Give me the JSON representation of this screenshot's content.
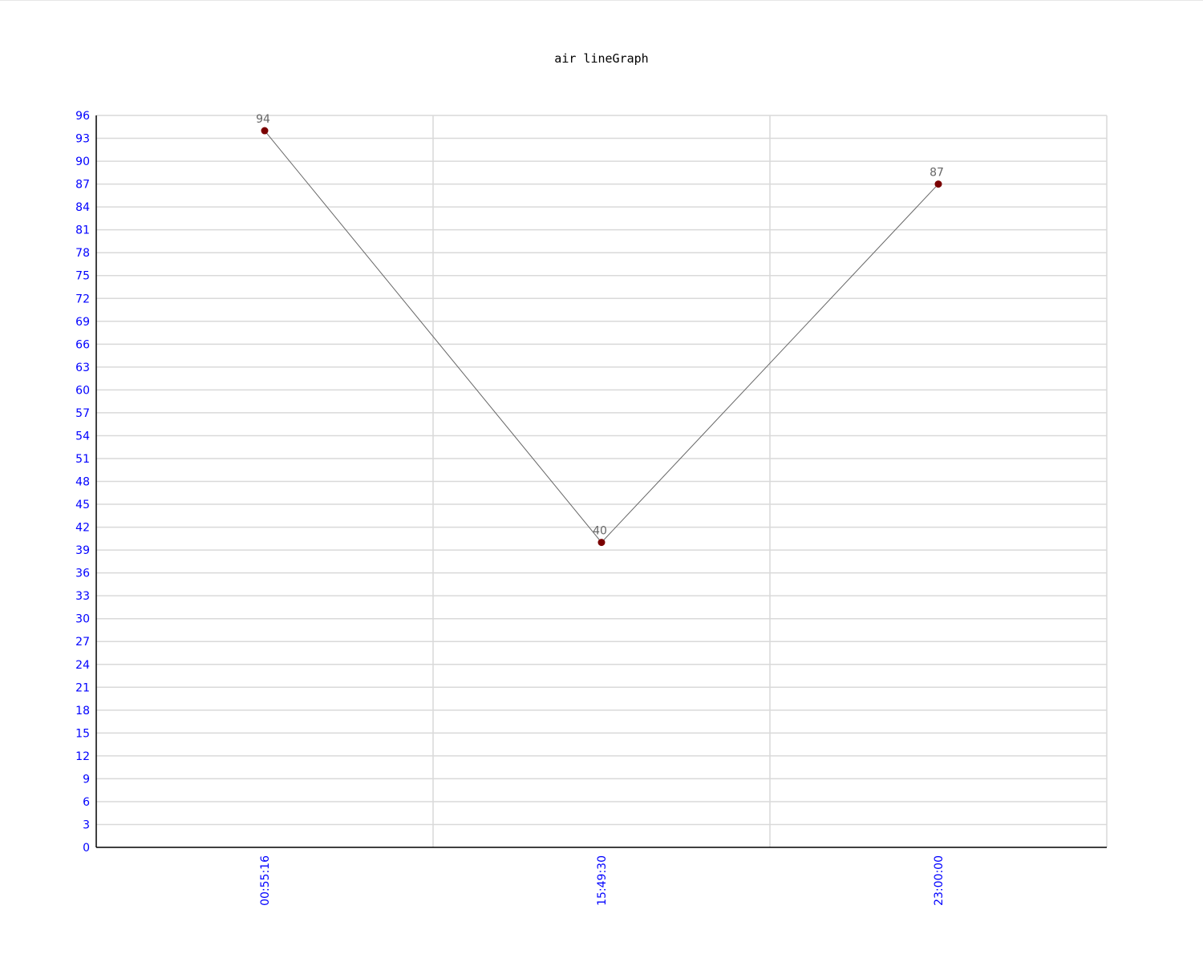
{
  "chart_data": {
    "type": "line",
    "title": "air lineGraph",
    "xlabel": "",
    "ylabel": "",
    "categories": [
      "00:55:16",
      "15:49:30",
      "23:00:00"
    ],
    "series": [
      {
        "values": [
          94,
          40,
          87
        ]
      }
    ],
    "ylim": [
      0,
      96
    ],
    "y_ticks": [
      0,
      3,
      6,
      9,
      12,
      15,
      18,
      21,
      24,
      27,
      30,
      33,
      36,
      39,
      42,
      45,
      48,
      51,
      54,
      57,
      60,
      63,
      66,
      69,
      72,
      75,
      78,
      81,
      84,
      87,
      90,
      93,
      96
    ],
    "x_label_orientation": "vertical",
    "grid": true,
    "legend": "none",
    "colors": {
      "line": "#666666",
      "marker": "#7a0000",
      "point_label": "#666666",
      "tick_label": "#0000ff",
      "grid": "#d9d9d9",
      "axis": "#000000",
      "title": "#000000"
    }
  }
}
